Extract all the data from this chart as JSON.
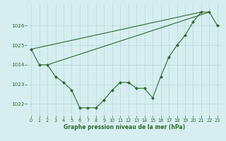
{
  "title": "Graphe pression niveau de la mer (hPa)",
  "background_color": "#d6eef0",
  "grid_color": "#b8d8da",
  "line_color": "#2d6a2d",
  "x_data": [
    0,
    1,
    2,
    3,
    4,
    5,
    6,
    7,
    8,
    9,
    10,
    11,
    12,
    13,
    14,
    15,
    16,
    17,
    18,
    19,
    20,
    21,
    22,
    23
  ],
  "y_main": [
    1024.8,
    1024.0,
    1024.0,
    1023.4,
    1023.1,
    1022.7,
    1021.8,
    1021.8,
    1021.8,
    1022.2,
    1022.7,
    1023.1,
    1023.1,
    1022.8,
    1022.8,
    1022.3,
    1023.4,
    1024.4,
    1025.0,
    1025.5,
    1026.2,
    1026.7,
    1026.7,
    1026.0
  ],
  "y_trend1_x": [
    0,
    21
  ],
  "y_trend1_y": [
    1024.8,
    1026.7
  ],
  "y_trend2_x": [
    2,
    22
  ],
  "y_trend2_y": [
    1024.0,
    1026.7
  ],
  "ylim": [
    1021.4,
    1027.1
  ],
  "yticks": [
    1022,
    1023,
    1024,
    1025,
    1026
  ],
  "xlim": [
    -0.5,
    23.5
  ],
  "xticks": [
    0,
    1,
    2,
    3,
    4,
    5,
    6,
    7,
    8,
    9,
    10,
    11,
    12,
    13,
    14,
    15,
    16,
    17,
    18,
    19,
    20,
    21,
    22,
    23
  ],
  "xlabel_fontsize": 5.5,
  "tick_fontsize": 4.8,
  "ytick_fontsize": 5.2
}
